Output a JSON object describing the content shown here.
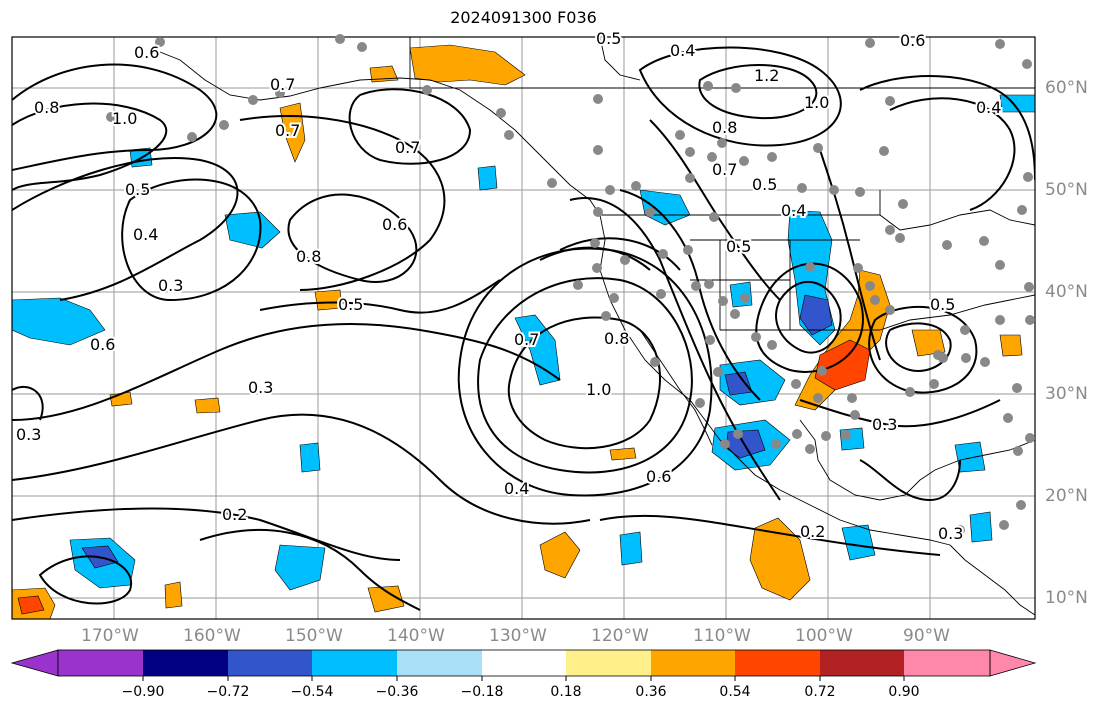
{
  "title": "2024091300 F036",
  "lat_labels": [
    "60°N",
    "50°N",
    "40°N",
    "30°N",
    "20°N",
    "10°N"
  ],
  "lon_labels": [
    "170°W",
    "160°W",
    "150°W",
    "140°W",
    "130°W",
    "120°W",
    "110°W",
    "100°W",
    "90°W"
  ],
  "contour_labels": [
    "0.6",
    "0.4",
    "0.7",
    "0.6",
    "0.5",
    "0.8",
    "1.0",
    "0.7",
    "0.5",
    "0.4",
    "0.3",
    "0.8",
    "0.6",
    "0.5",
    "0.7",
    "0.3",
    "0.3",
    "0.2",
    "0.7",
    "0.8",
    "1.0",
    "0.4",
    "0.6",
    "1.2",
    "0.8",
    "1.0",
    "0.7",
    "0.5",
    "0.4",
    "0.5",
    "0.3",
    "0.6",
    "0.3",
    "0.2",
    "0.4",
    "0.5"
  ],
  "colorbar": {
    "ticks": [
      "−0.90",
      "−0.72",
      "−0.54",
      "−0.36",
      "−0.18",
      "0.18",
      "0.36",
      "0.54",
      "0.72",
      "0.90"
    ],
    "colors": [
      "#9933cc",
      "#000080",
      "#3355cc",
      "#00bfff",
      "#aadff8",
      "#ffffff",
      "#fff08c",
      "#ffa500",
      "#ff4500",
      "#b22222",
      "#ff88aa"
    ]
  }
}
